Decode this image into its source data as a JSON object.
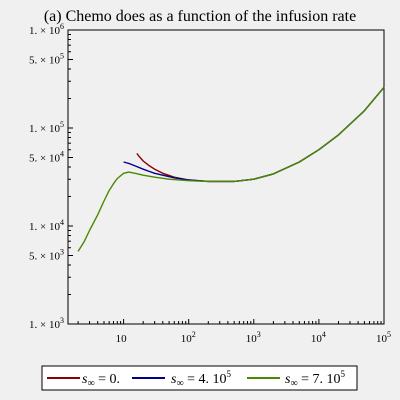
{
  "chart_data": {
    "type": "line",
    "title": "(a) Chemo does as a function of the infusion rate",
    "x_scale": "log",
    "y_scale": "log",
    "xlim": [
      1.4,
      100000
    ],
    "ylim": [
      1000,
      1000000
    ],
    "xlabel": "",
    "ylabel": "",
    "x_ticks": [
      {
        "value": 10,
        "base": "10",
        "exp": ""
      },
      {
        "value": 100,
        "base": "10",
        "exp": "2"
      },
      {
        "value": 1000,
        "base": "10",
        "exp": "3"
      },
      {
        "value": 10000,
        "base": "10",
        "exp": "4"
      },
      {
        "value": 100000,
        "base": "10",
        "exp": "5"
      }
    ],
    "y_ticks": [
      {
        "value": 1000,
        "mant": "1. ×",
        "base": "10",
        "exp": "3"
      },
      {
        "value": 5000,
        "mant": "5. ×",
        "base": "10",
        "exp": "3"
      },
      {
        "value": 10000,
        "mant": "1. ×",
        "base": "10",
        "exp": "4"
      },
      {
        "value": 50000,
        "mant": "5. ×",
        "base": "10",
        "exp": "4"
      },
      {
        "value": 100000,
        "mant": "1. ×",
        "base": "10",
        "exp": "5"
      },
      {
        "value": 500000,
        "mant": "5. ×",
        "base": "10",
        "exp": "5"
      },
      {
        "value": 1000000,
        "mant": "1. ×",
        "base": "10",
        "exp": "6"
      }
    ],
    "legend_position": "bottom",
    "grid": false,
    "series": [
      {
        "name": "s∞ = 0.",
        "legend": {
          "lhs": "s",
          "sub": "∞",
          "rhs": " = 0."
        },
        "color": "#8b0000",
        "x": [
          16,
          17,
          20,
          25,
          30,
          40,
          60,
          100,
          200,
          500,
          1000,
          2000,
          5000,
          10000,
          20000,
          50000,
          100000
        ],
        "y": [
          55000,
          52000,
          46000,
          41000,
          38000,
          34500,
          31500,
          29500,
          28500,
          28500,
          30000,
          34000,
          45000,
          60000,
          85000,
          150000,
          260000
        ]
      },
      {
        "name": "s∞ = 4.10⁵",
        "legend": {
          "lhs": "s",
          "sub": "∞",
          "rhs": " = 4. 10",
          "exp": "5"
        },
        "color": "#00008b",
        "x": [
          10,
          12,
          15,
          20,
          25,
          30,
          40,
          60,
          100,
          200,
          500,
          1000,
          2000,
          5000,
          10000,
          20000,
          50000,
          100000
        ],
        "y": [
          45000,
          43500,
          41000,
          38000,
          36000,
          34500,
          33000,
          31000,
          29500,
          28500,
          28500,
          30000,
          34000,
          45000,
          60000,
          85000,
          150000,
          260000
        ]
      },
      {
        "name": "s∞ = 7.10⁵",
        "legend": {
          "lhs": "s",
          "sub": "∞",
          "rhs": " = 7. 10",
          "exp": "5"
        },
        "color": "#4a8a00",
        "x": [
          2,
          2.5,
          3,
          4,
          5,
          6,
          7,
          8,
          10,
          12,
          15,
          20,
          30,
          50,
          100,
          200,
          500,
          1000,
          2000,
          5000,
          10000,
          20000,
          50000,
          100000
        ],
        "y": [
          5500,
          7000,
          9000,
          13000,
          18000,
          23000,
          27000,
          30500,
          34500,
          35500,
          34500,
          33000,
          31500,
          30000,
          29000,
          28500,
          28500,
          30000,
          34000,
          45000,
          60000,
          85000,
          150000,
          260000
        ]
      }
    ]
  }
}
